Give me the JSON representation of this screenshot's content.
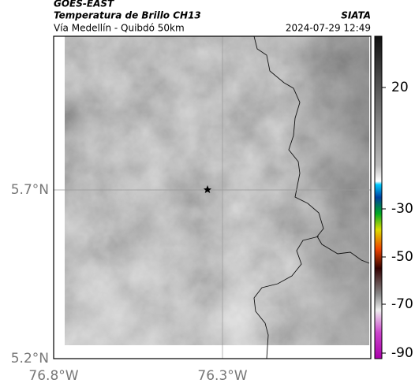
{
  "header": {
    "left": [
      "GOES-EAST",
      "Temperatura de Brillo CH13",
      "Vía Medellín - Quibdó 50km"
    ],
    "right": [
      "SIATA",
      "2024-07-29 12:49"
    ]
  },
  "axes": {
    "lat_labels": [
      "5.7°N",
      "5.2°N"
    ],
    "lon_labels": [
      "76.8°W",
      "76.3°W"
    ]
  },
  "colorbar": {
    "labels": [
      "20",
      "-30",
      "-50",
      "-70",
      "-90"
    ]
  }
}
